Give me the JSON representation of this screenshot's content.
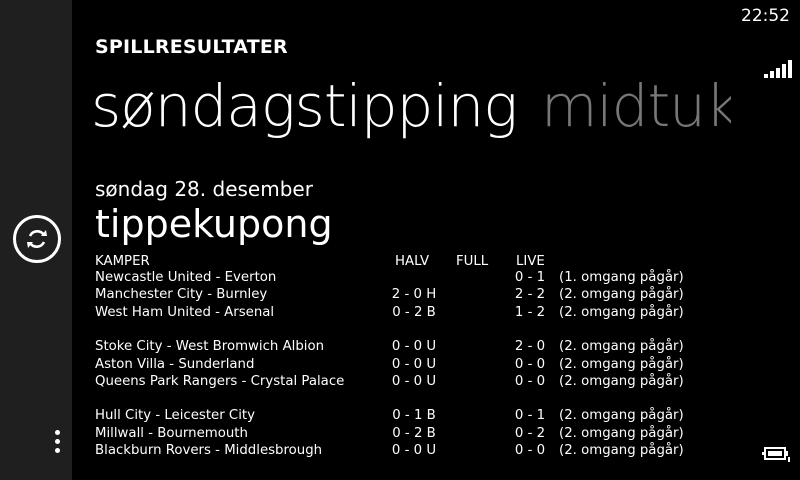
{
  "status_bar": {
    "time": "22:52"
  },
  "app_title": "SPILLRESULTATER",
  "pivot": {
    "active": "søndagstipping",
    "inactive": "midtuk"
  },
  "date": "søndag 28. desember",
  "section_title": "tippekupong",
  "table": {
    "headers": {
      "match": "KAMPER",
      "half": "HALV",
      "full": "FULL",
      "live": "LIVE"
    },
    "groups": [
      [
        {
          "match": "Newcastle United - Everton",
          "half": "",
          "live": "0 - 1",
          "status": "(1. omgang pågår)"
        },
        {
          "match": "Manchester City - Burnley",
          "half": "2 - 0 H",
          "live": "2 - 2",
          "status": "(2. omgang pågår)"
        },
        {
          "match": "West Ham United - Arsenal",
          "half": "0 - 2 B",
          "live": "1 - 2",
          "status": "(2. omgang pågår)"
        }
      ],
      [
        {
          "match": "Stoke City - West Bromwich Albion",
          "half": "0 - 0 U",
          "live": "2 - 0",
          "status": "(2. omgang pågår)"
        },
        {
          "match": "Aston Villa - Sunderland",
          "half": "0 - 0 U",
          "live": "0 - 0",
          "status": "(2. omgang pågår)"
        },
        {
          "match": "Queens Park Rangers - Crystal Palace",
          "half": "0 - 0 U",
          "live": "0 - 0",
          "status": "(2. omgang pågår)"
        }
      ],
      [
        {
          "match": "Hull City - Leicester City",
          "half": "0 - 1 B",
          "live": "0 - 1",
          "status": "(2. omgang pågår)"
        },
        {
          "match": "Millwall - Bournemouth",
          "half": "0 - 2 B",
          "live": "0 - 2",
          "status": "(2. omgang pågår)"
        },
        {
          "match": "Blackburn Rovers - Middlesbrough",
          "half": "0 - 0 U",
          "live": "0 - 0",
          "status": "(2. omgang pågår)"
        }
      ]
    ]
  },
  "icons": {
    "sync": "sync-icon",
    "more": "more-dots-icon",
    "signal": "signal-icon",
    "battery": "battery-charging-icon"
  }
}
